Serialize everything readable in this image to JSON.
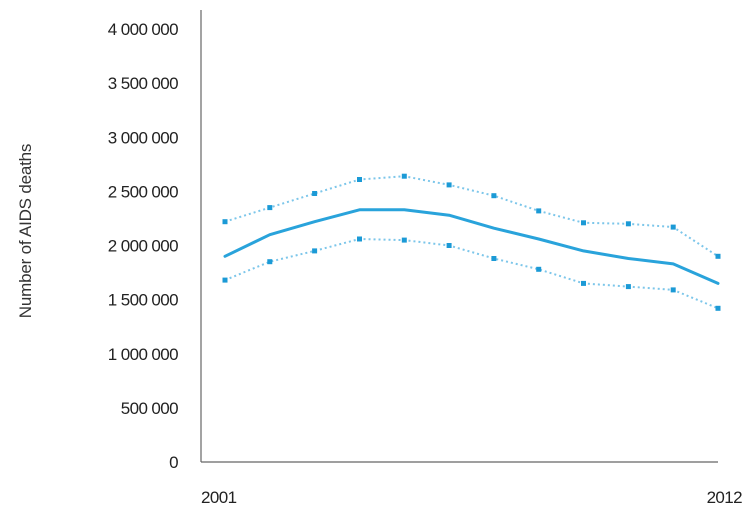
{
  "chart_data": {
    "type": "line",
    "title": "",
    "xlabel": "",
    "ylabel": "Number of AIDS deaths",
    "x": [
      2001,
      2002,
      2003,
      2004,
      2005,
      2006,
      2007,
      2008,
      2009,
      2010,
      2011,
      2012
    ],
    "x_tick_labels": [
      "2001",
      "2012"
    ],
    "ylim": [
      0,
      4000000
    ],
    "y_ticks": [
      0,
      500000,
      1000000,
      1500000,
      2000000,
      2500000,
      3000000,
      3500000,
      4000000
    ],
    "y_tick_labels": [
      "0",
      "500 000",
      "1 000 000",
      "1 500 000",
      "2 000 000",
      "2 500 000",
      "3 000 000",
      "3 500 000",
      "4 000 000"
    ],
    "grid": false,
    "series": [
      {
        "role": "estimate",
        "line_style": "solid",
        "values": [
          1900000,
          2100000,
          2220000,
          2330000,
          2330000,
          2280000,
          2160000,
          2060000,
          1950000,
          1880000,
          1830000,
          1650000
        ]
      },
      {
        "role": "upper-bound",
        "line_style": "dotted",
        "values": [
          2220000,
          2350000,
          2480000,
          2610000,
          2640000,
          2560000,
          2460000,
          2320000,
          2210000,
          2200000,
          2170000,
          1900000
        ]
      },
      {
        "role": "lower-bound",
        "line_style": "dotted",
        "values": [
          1680000,
          1850000,
          1950000,
          2060000,
          2050000,
          2000000,
          1880000,
          1780000,
          1650000,
          1620000,
          1590000,
          1420000
        ]
      }
    ],
    "colors": {
      "estimate_line": "#29a3db",
      "bound_line": "#7cc6ea",
      "bound_marker": "#1b9ad6",
      "axis": "#666666"
    }
  }
}
